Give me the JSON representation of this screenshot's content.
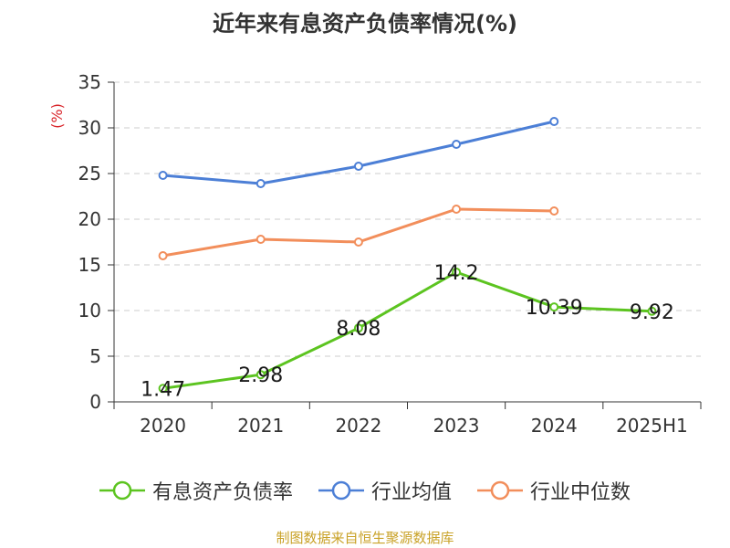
{
  "chart_data": {
    "type": "line",
    "title": "近年来有息资产负债率情况(%)",
    "ylabel": "(%)",
    "categories": [
      "2020",
      "2021",
      "2022",
      "2023",
      "2024",
      "2025H1"
    ],
    "ylim": [
      0,
      35
    ],
    "yticks": [
      0,
      5,
      10,
      15,
      20,
      25,
      30,
      35
    ],
    "grid": true,
    "legend_position": "bottom",
    "series": [
      {
        "name": "有息资产负债率",
        "color": "#5cc420",
        "values": [
          1.47,
          2.98,
          8.08,
          14.2,
          10.39,
          9.92
        ],
        "labels": [
          "1.47",
          "2.98",
          "8.08",
          "14.2",
          "10.39",
          "9.92"
        ],
        "show_labels": true
      },
      {
        "name": "行业均值",
        "color": "#4c7fd6",
        "values": [
          24.8,
          23.9,
          25.8,
          28.2,
          30.7,
          null
        ],
        "show_labels": false
      },
      {
        "name": "行业中位数",
        "color": "#f28e5b",
        "values": [
          16.0,
          17.8,
          17.5,
          21.1,
          20.9,
          null
        ],
        "show_labels": false
      }
    ]
  },
  "source": "制图数据来自恒生聚源数据库"
}
